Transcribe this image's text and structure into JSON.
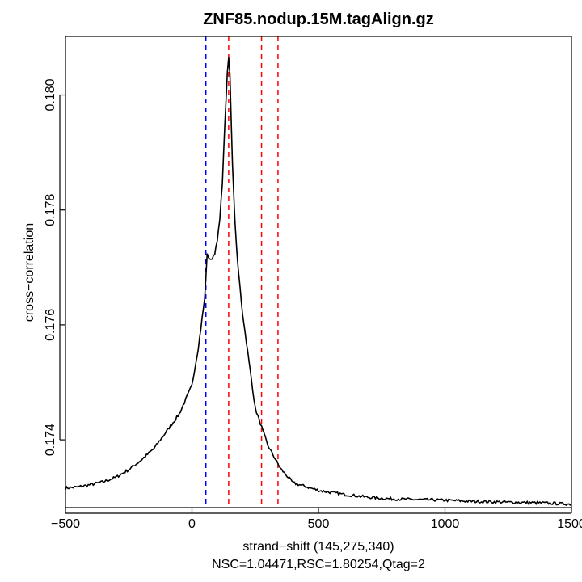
{
  "chart_data": {
    "type": "line",
    "title": "ZNF85.nodup.15M.tagAlign.gz",
    "xlabel": "strand−shift (145,275,340)",
    "ylabel": "cross−correlation",
    "subtitle": "NSC=1.04471,RSC=1.80254,Qtag=2",
    "xlim": [
      -500,
      1500
    ],
    "ylim": [
      0.17282,
      0.18102
    ],
    "xticks": [
      -500,
      0,
      500,
      1000,
      1500
    ],
    "xtick_labels": [
      "−500",
      "0",
      "500",
      "1000",
      "1500"
    ],
    "yticks": [
      0.174,
      0.176,
      0.178,
      0.18
    ],
    "ytick_labels": [
      "0.174",
      "0.176",
      "0.178",
      "0.180"
    ],
    "grid": false,
    "series": [
      {
        "color": "#000000",
        "x": [
          -500,
          -450,
          -400,
          -350,
          -300,
          -250,
          -200,
          -150,
          -100,
          -50,
          0,
          25,
          50,
          60,
          75,
          90,
          100,
          110,
          120,
          130,
          140,
          145,
          150,
          160,
          170,
          180,
          200,
          250,
          300,
          350,
          400,
          500,
          600,
          700,
          800,
          900,
          1000,
          1100,
          1200,
          1300,
          1400,
          1500
        ],
        "y": [
          0.17316,
          0.17318,
          0.17322,
          0.17327,
          0.17335,
          0.17348,
          0.17365,
          0.17385,
          0.17415,
          0.17445,
          0.17495,
          0.1756,
          0.17645,
          0.17722,
          0.17712,
          0.17725,
          0.17745,
          0.17785,
          0.17845,
          0.1795,
          0.1804,
          0.18065,
          0.18035,
          0.1788,
          0.1778,
          0.1771,
          0.1762,
          0.17455,
          0.1739,
          0.1735,
          0.17325,
          0.17312,
          0.17305,
          0.173,
          0.17297,
          0.17296,
          0.17295,
          0.17293,
          0.17292,
          0.17291,
          0.1729,
          0.17288
        ]
      }
    ],
    "vlines": [
      {
        "x": 55,
        "color": "#0000ff",
        "style": "dashed"
      },
      {
        "x": 145,
        "color": "#ff0000",
        "style": "dashed"
      },
      {
        "x": 275,
        "color": "#ff0000",
        "style": "dashed"
      },
      {
        "x": 340,
        "color": "#ff0000",
        "style": "dashed"
      }
    ]
  }
}
